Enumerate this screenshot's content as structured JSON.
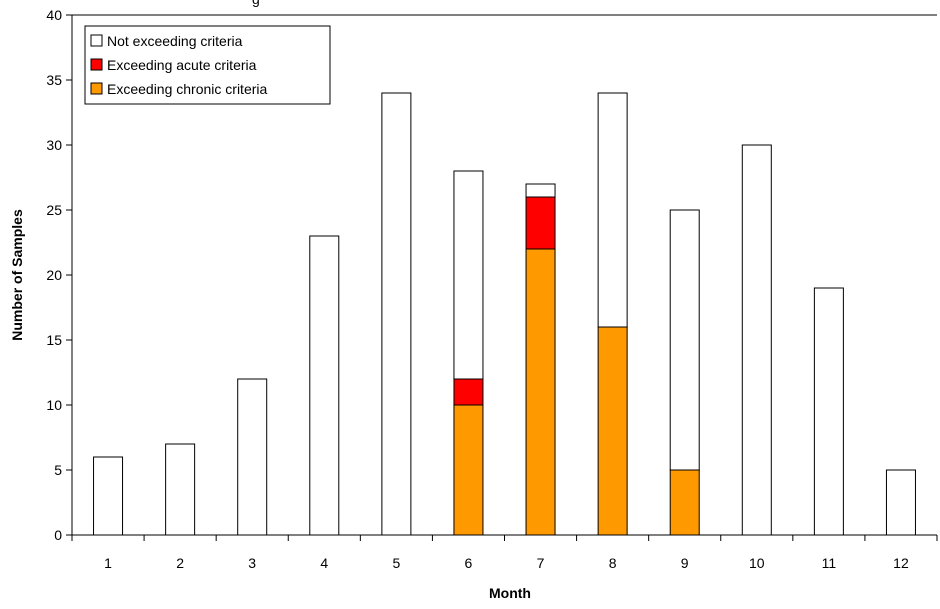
{
  "chart_data": {
    "type": "bar",
    "stacked": true,
    "title": "",
    "title_fragment": "g",
    "xlabel": "Month",
    "ylabel": "Number of Samples",
    "categories": [
      "1",
      "2",
      "3",
      "4",
      "5",
      "6",
      "7",
      "8",
      "9",
      "10",
      "11",
      "12"
    ],
    "ylim": [
      0,
      40
    ],
    "yticks": [
      0,
      5,
      10,
      15,
      20,
      25,
      30,
      35,
      40
    ],
    "grid": false,
    "legend_position": "top-left",
    "series": [
      {
        "name": "Exceeding chronic criteria",
        "color": "#FF9900",
        "values": [
          0,
          0,
          0,
          0,
          0,
          10,
          22,
          16,
          5,
          0,
          0,
          0
        ]
      },
      {
        "name": "Exceeding acute criteria",
        "color": "#FF0000",
        "values": [
          0,
          0,
          0,
          0,
          0,
          2,
          4,
          0,
          0,
          0,
          0,
          0
        ]
      },
      {
        "name": "Not exceeding criteria",
        "color": "#FFFFFF",
        "values": [
          6,
          7,
          12,
          23,
          34,
          16,
          1,
          18,
          20,
          30,
          19,
          5
        ]
      }
    ],
    "legend_order": [
      "Not exceeding criteria",
      "Exceeding acute criteria",
      "Exceeding chronic criteria"
    ]
  }
}
